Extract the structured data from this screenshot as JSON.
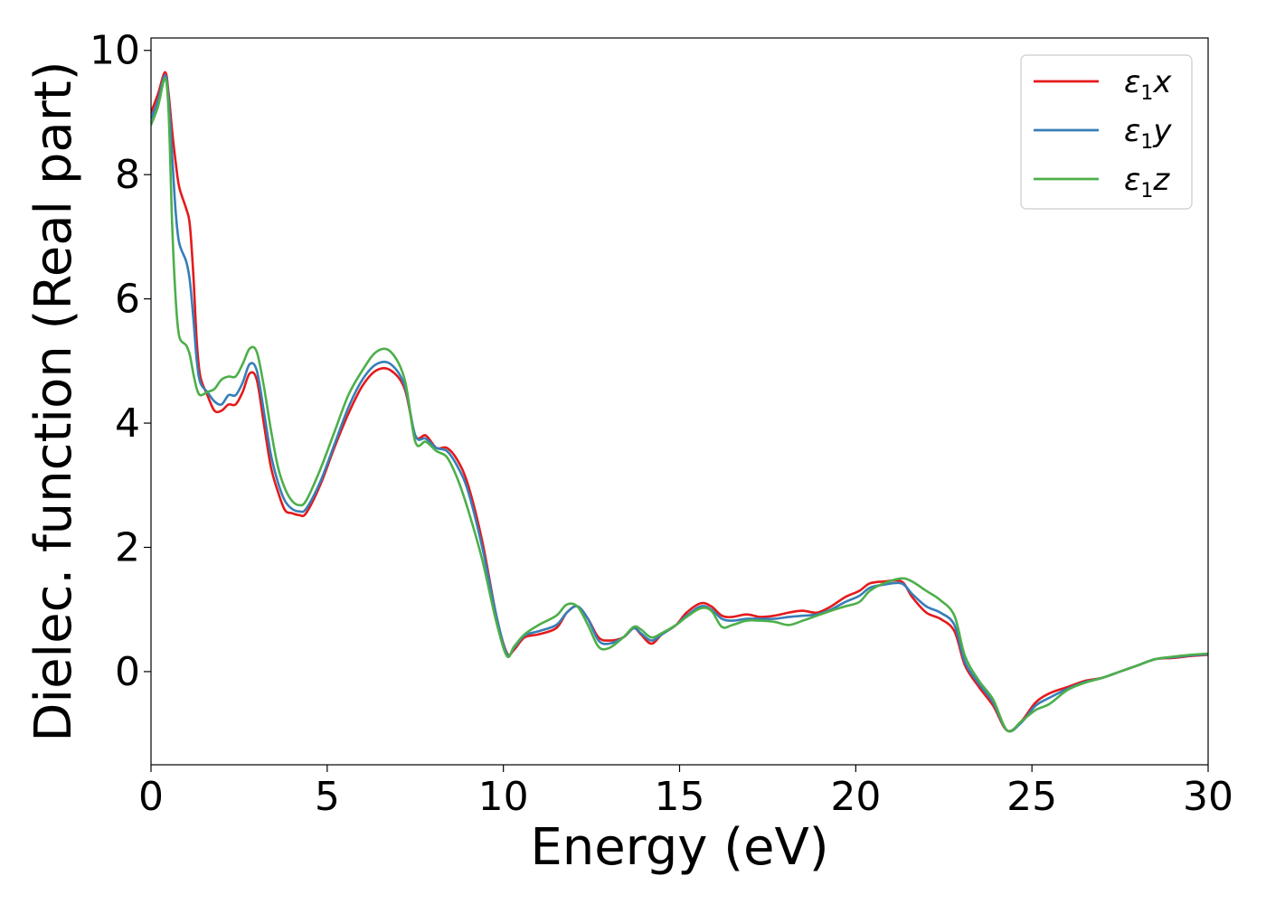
{
  "chart_data": {
    "type": "line",
    "title": "",
    "xlabel": "Energy (eV)",
    "ylabel": "Dielec. function (Real part)",
    "xlim": [
      0,
      30
    ],
    "ylim": [
      -1.5,
      10.2
    ],
    "xticks": [
      0,
      5,
      10,
      15,
      20,
      25,
      30
    ],
    "xtick_labels": [
      "0",
      "5",
      "10",
      "15",
      "20",
      "25",
      "30"
    ],
    "yticks": [
      0,
      2,
      4,
      6,
      8,
      10
    ],
    "ytick_labels": [
      "0",
      "2",
      "4",
      "6",
      "8",
      "10"
    ],
    "grid": false,
    "legend": {
      "position": "top-right"
    },
    "series": [
      {
        "name": "ε1x",
        "legend": {
          "symbol": "ε",
          "sub": "1",
          "suffix": "x"
        },
        "color": "#e41a1c",
        "points": [
          [
            0,
            9.0
          ],
          [
            0.2,
            9.3
          ],
          [
            0.4,
            9.65
          ],
          [
            0.5,
            9.3
          ],
          [
            0.6,
            8.7
          ],
          [
            0.7,
            8.2
          ],
          [
            0.8,
            7.8
          ],
          [
            1.0,
            7.45
          ],
          [
            1.1,
            7.2
          ],
          [
            1.2,
            6.4
          ],
          [
            1.3,
            5.3
          ],
          [
            1.4,
            4.75
          ],
          [
            1.6,
            4.45
          ],
          [
            1.8,
            4.2
          ],
          [
            2.0,
            4.2
          ],
          [
            2.2,
            4.3
          ],
          [
            2.4,
            4.3
          ],
          [
            2.6,
            4.5
          ],
          [
            2.8,
            4.8
          ],
          [
            3.0,
            4.7
          ],
          [
            3.2,
            4.0
          ],
          [
            3.4,
            3.3
          ],
          [
            3.6,
            2.9
          ],
          [
            3.8,
            2.6
          ],
          [
            4.0,
            2.55
          ],
          [
            4.2,
            2.52
          ],
          [
            4.4,
            2.55
          ],
          [
            4.8,
            3.0
          ],
          [
            5.2,
            3.6
          ],
          [
            5.6,
            4.15
          ],
          [
            6.0,
            4.6
          ],
          [
            6.4,
            4.85
          ],
          [
            6.8,
            4.85
          ],
          [
            7.2,
            4.55
          ],
          [
            7.5,
            3.8
          ],
          [
            7.8,
            3.8
          ],
          [
            8.1,
            3.6
          ],
          [
            8.4,
            3.6
          ],
          [
            8.7,
            3.4
          ],
          [
            9.0,
            3.0
          ],
          [
            9.4,
            2.1
          ],
          [
            9.8,
            0.9
          ],
          [
            10.1,
            0.3
          ],
          [
            10.3,
            0.35
          ],
          [
            10.6,
            0.55
          ],
          [
            11.0,
            0.6
          ],
          [
            11.5,
            0.7
          ],
          [
            11.8,
            0.95
          ],
          [
            12.1,
            1.05
          ],
          [
            12.4,
            0.85
          ],
          [
            12.7,
            0.55
          ],
          [
            13.0,
            0.5
          ],
          [
            13.4,
            0.55
          ],
          [
            13.7,
            0.7
          ],
          [
            13.9,
            0.6
          ],
          [
            14.2,
            0.45
          ],
          [
            14.5,
            0.6
          ],
          [
            14.9,
            0.75
          ],
          [
            15.2,
            0.95
          ],
          [
            15.6,
            1.1
          ],
          [
            15.9,
            1.05
          ],
          [
            16.2,
            0.9
          ],
          [
            16.5,
            0.88
          ],
          [
            16.9,
            0.92
          ],
          [
            17.3,
            0.88
          ],
          [
            17.7,
            0.9
          ],
          [
            18.1,
            0.95
          ],
          [
            18.5,
            0.98
          ],
          [
            18.9,
            0.95
          ],
          [
            19.3,
            1.05
          ],
          [
            19.7,
            1.2
          ],
          [
            20.1,
            1.3
          ],
          [
            20.4,
            1.42
          ],
          [
            20.8,
            1.45
          ],
          [
            21.3,
            1.45
          ],
          [
            21.6,
            1.2
          ],
          [
            22.0,
            0.95
          ],
          [
            22.4,
            0.85
          ],
          [
            22.8,
            0.65
          ],
          [
            23.1,
            0.1
          ],
          [
            23.5,
            -0.25
          ],
          [
            23.9,
            -0.55
          ],
          [
            24.3,
            -0.95
          ],
          [
            24.7,
            -0.8
          ],
          [
            25.1,
            -0.5
          ],
          [
            25.5,
            -0.35
          ],
          [
            26.0,
            -0.25
          ],
          [
            26.5,
            -0.15
          ],
          [
            27.0,
            -0.1
          ],
          [
            27.5,
            0.0
          ],
          [
            28.0,
            0.1
          ],
          [
            28.5,
            0.2
          ],
          [
            29.0,
            0.22
          ],
          [
            29.5,
            0.25
          ],
          [
            30.0,
            0.27
          ]
        ]
      },
      {
        "name": "ε1y",
        "legend": {
          "symbol": "ε",
          "sub": "1",
          "suffix": "y"
        },
        "color": "#377eb8",
        "points": [
          [
            0,
            8.9
          ],
          [
            0.2,
            9.2
          ],
          [
            0.4,
            9.6
          ],
          [
            0.5,
            9.2
          ],
          [
            0.6,
            8.3
          ],
          [
            0.7,
            7.4
          ],
          [
            0.8,
            6.9
          ],
          [
            1.0,
            6.6
          ],
          [
            1.1,
            6.3
          ],
          [
            1.2,
            5.7
          ],
          [
            1.3,
            5.0
          ],
          [
            1.4,
            4.65
          ],
          [
            1.6,
            4.5
          ],
          [
            1.8,
            4.35
          ],
          [
            2.0,
            4.3
          ],
          [
            2.2,
            4.45
          ],
          [
            2.4,
            4.45
          ],
          [
            2.6,
            4.65
          ],
          [
            2.8,
            4.95
          ],
          [
            3.0,
            4.85
          ],
          [
            3.2,
            4.2
          ],
          [
            3.4,
            3.5
          ],
          [
            3.6,
            3.05
          ],
          [
            3.8,
            2.75
          ],
          [
            4.0,
            2.62
          ],
          [
            4.2,
            2.58
          ],
          [
            4.4,
            2.62
          ],
          [
            4.8,
            3.05
          ],
          [
            5.2,
            3.65
          ],
          [
            5.6,
            4.25
          ],
          [
            6.0,
            4.7
          ],
          [
            6.4,
            4.95
          ],
          [
            6.8,
            4.95
          ],
          [
            7.2,
            4.6
          ],
          [
            7.5,
            3.8
          ],
          [
            7.8,
            3.75
          ],
          [
            8.1,
            3.6
          ],
          [
            8.4,
            3.55
          ],
          [
            8.7,
            3.3
          ],
          [
            9.0,
            2.9
          ],
          [
            9.4,
            2.0
          ],
          [
            9.8,
            0.9
          ],
          [
            10.1,
            0.28
          ],
          [
            10.3,
            0.38
          ],
          [
            10.6,
            0.58
          ],
          [
            11.0,
            0.65
          ],
          [
            11.5,
            0.75
          ],
          [
            11.8,
            0.95
          ],
          [
            12.1,
            1.05
          ],
          [
            12.4,
            0.85
          ],
          [
            12.7,
            0.5
          ],
          [
            13.0,
            0.45
          ],
          [
            13.4,
            0.55
          ],
          [
            13.7,
            0.7
          ],
          [
            13.9,
            0.62
          ],
          [
            14.2,
            0.5
          ],
          [
            14.5,
            0.6
          ],
          [
            14.9,
            0.75
          ],
          [
            15.2,
            0.9
          ],
          [
            15.6,
            1.05
          ],
          [
            15.9,
            1.0
          ],
          [
            16.2,
            0.85
          ],
          [
            16.5,
            0.82
          ],
          [
            16.9,
            0.85
          ],
          [
            17.3,
            0.85
          ],
          [
            17.7,
            0.85
          ],
          [
            18.1,
            0.88
          ],
          [
            18.5,
            0.9
          ],
          [
            18.9,
            0.92
          ],
          [
            19.3,
            1.0
          ],
          [
            19.7,
            1.12
          ],
          [
            20.1,
            1.22
          ],
          [
            20.4,
            1.35
          ],
          [
            20.8,
            1.4
          ],
          [
            21.3,
            1.42
          ],
          [
            21.6,
            1.25
          ],
          [
            22.0,
            1.05
          ],
          [
            22.4,
            0.95
          ],
          [
            22.8,
            0.75
          ],
          [
            23.1,
            0.15
          ],
          [
            23.5,
            -0.2
          ],
          [
            23.9,
            -0.5
          ],
          [
            24.3,
            -0.95
          ],
          [
            24.7,
            -0.82
          ],
          [
            25.1,
            -0.55
          ],
          [
            25.5,
            -0.42
          ],
          [
            26.0,
            -0.28
          ],
          [
            26.5,
            -0.17
          ],
          [
            27.0,
            -0.1
          ],
          [
            27.5,
            0.0
          ],
          [
            28.0,
            0.1
          ],
          [
            28.5,
            0.2
          ],
          [
            29.0,
            0.23
          ],
          [
            29.5,
            0.26
          ],
          [
            30.0,
            0.28
          ]
        ]
      },
      {
        "name": "ε1z",
        "legend": {
          "symbol": "ε",
          "sub": "1",
          "suffix": "z"
        },
        "color": "#4daf4a",
        "points": [
          [
            0,
            8.8
          ],
          [
            0.2,
            9.1
          ],
          [
            0.4,
            9.55
          ],
          [
            0.5,
            9.0
          ],
          [
            0.6,
            7.2
          ],
          [
            0.7,
            6.0
          ],
          [
            0.8,
            5.4
          ],
          [
            1.0,
            5.25
          ],
          [
            1.1,
            5.1
          ],
          [
            1.2,
            4.8
          ],
          [
            1.3,
            4.55
          ],
          [
            1.4,
            4.45
          ],
          [
            1.6,
            4.5
          ],
          [
            1.8,
            4.55
          ],
          [
            2.0,
            4.7
          ],
          [
            2.2,
            4.75
          ],
          [
            2.4,
            4.75
          ],
          [
            2.6,
            4.95
          ],
          [
            2.8,
            5.2
          ],
          [
            3.0,
            5.15
          ],
          [
            3.2,
            4.6
          ],
          [
            3.4,
            3.9
          ],
          [
            3.6,
            3.3
          ],
          [
            3.8,
            2.95
          ],
          [
            4.0,
            2.75
          ],
          [
            4.2,
            2.68
          ],
          [
            4.4,
            2.75
          ],
          [
            4.8,
            3.25
          ],
          [
            5.2,
            3.85
          ],
          [
            5.6,
            4.45
          ],
          [
            6.0,
            4.85
          ],
          [
            6.4,
            5.15
          ],
          [
            6.8,
            5.15
          ],
          [
            7.2,
            4.7
          ],
          [
            7.5,
            3.7
          ],
          [
            7.8,
            3.7
          ],
          [
            8.1,
            3.55
          ],
          [
            8.4,
            3.45
          ],
          [
            8.7,
            3.1
          ],
          [
            9.0,
            2.6
          ],
          [
            9.4,
            1.8
          ],
          [
            9.8,
            0.8
          ],
          [
            10.1,
            0.25
          ],
          [
            10.3,
            0.4
          ],
          [
            10.6,
            0.6
          ],
          [
            11.0,
            0.75
          ],
          [
            11.5,
            0.9
          ],
          [
            11.8,
            1.08
          ],
          [
            12.1,
            1.05
          ],
          [
            12.4,
            0.75
          ],
          [
            12.7,
            0.4
          ],
          [
            13.0,
            0.38
          ],
          [
            13.4,
            0.55
          ],
          [
            13.7,
            0.72
          ],
          [
            13.9,
            0.68
          ],
          [
            14.2,
            0.55
          ],
          [
            14.5,
            0.62
          ],
          [
            14.9,
            0.75
          ],
          [
            15.2,
            0.88
          ],
          [
            15.6,
            1.02
          ],
          [
            15.9,
            0.98
          ],
          [
            16.2,
            0.72
          ],
          [
            16.5,
            0.75
          ],
          [
            16.9,
            0.82
          ],
          [
            17.3,
            0.82
          ],
          [
            17.7,
            0.8
          ],
          [
            18.1,
            0.75
          ],
          [
            18.5,
            0.82
          ],
          [
            18.9,
            0.9
          ],
          [
            19.3,
            0.98
          ],
          [
            19.7,
            1.05
          ],
          [
            20.1,
            1.12
          ],
          [
            20.4,
            1.3
          ],
          [
            20.8,
            1.42
          ],
          [
            21.3,
            1.5
          ],
          [
            21.6,
            1.45
          ],
          [
            22.0,
            1.3
          ],
          [
            22.4,
            1.15
          ],
          [
            22.8,
            0.9
          ],
          [
            23.1,
            0.25
          ],
          [
            23.5,
            -0.15
          ],
          [
            23.9,
            -0.45
          ],
          [
            24.3,
            -0.95
          ],
          [
            24.7,
            -0.8
          ],
          [
            25.1,
            -0.62
          ],
          [
            25.5,
            -0.52
          ],
          [
            26.0,
            -0.3
          ],
          [
            26.5,
            -0.18
          ],
          [
            27.0,
            -0.1
          ],
          [
            27.5,
            0.0
          ],
          [
            28.0,
            0.1
          ],
          [
            28.5,
            0.2
          ],
          [
            29.0,
            0.24
          ],
          [
            29.5,
            0.27
          ],
          [
            30.0,
            0.29
          ]
        ]
      }
    ]
  }
}
